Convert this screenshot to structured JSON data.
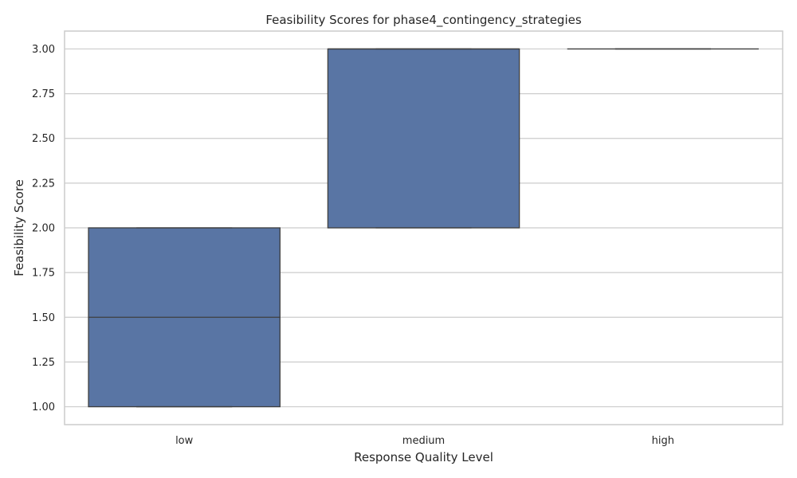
{
  "chart_data": {
    "type": "box",
    "title": "Feasibility Scores for phase4_contingency_strategies",
    "xlabel": "Response Quality Level",
    "ylabel": "Feasibility Score",
    "categories": [
      "low",
      "medium",
      "high"
    ],
    "boxes": [
      {
        "category": "low",
        "whisker_low": 1.0,
        "q1": 1.0,
        "median": 1.5,
        "q3": 2.0,
        "whisker_high": 2.0
      },
      {
        "category": "medium",
        "whisker_low": 2.0,
        "q1": 2.0,
        "median": 3.0,
        "q3": 3.0,
        "whisker_high": 3.0
      },
      {
        "category": "high",
        "whisker_low": 3.0,
        "q1": 3.0,
        "median": 3.0,
        "q3": 3.0,
        "whisker_high": 3.0
      }
    ],
    "ylim": [
      0.9,
      3.1
    ],
    "yticks": [
      "1.00",
      "1.25",
      "1.50",
      "1.75",
      "2.00",
      "2.25",
      "2.50",
      "2.75",
      "3.00"
    ],
    "grid": "horizontal",
    "box_color": "#5975a4",
    "line_color": "#3f3f3f",
    "grid_color": "#cccccc"
  }
}
